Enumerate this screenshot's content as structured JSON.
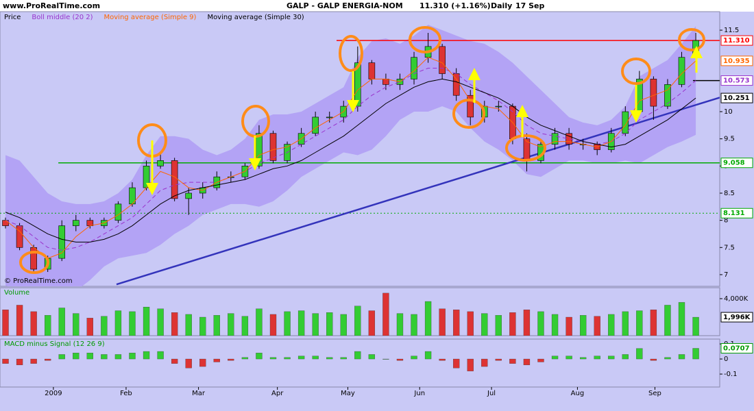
{
  "header": {
    "site": "www.ProRealTime.com",
    "title": "GALP - GALP ENERGIA-NOM",
    "change": "11.310 (+1.16%)",
    "period": "Daily",
    "date": "17 Sep",
    "copyright": "© ProRealTime.com"
  },
  "chart_data": [
    {
      "type": "candlestick",
      "xlim": [
        -0.39,
        50.7
      ],
      "ylim": [
        6.785,
        11.841
      ],
      "yticks": [
        7,
        7.5,
        8,
        8.5,
        9,
        9.5,
        10,
        11.5
      ],
      "up_color": "#33cc33",
      "down_color": "#dd3333",
      "series": [
        {
          "name": "Price",
          "color": "#000000",
          "last_label": "11.310",
          "last_color": "#ff0000",
          "open": [
            8.0,
            7.9,
            7.5,
            7.1,
            7.3,
            7.9,
            8.0,
            7.9,
            8.0,
            8.3,
            8.6,
            9.0,
            9.1,
            8.4,
            8.5,
            8.6,
            8.8,
            8.8,
            9.0,
            9.6,
            9.1,
            9.4,
            9.6,
            9.9,
            9.9,
            10.1,
            10.9,
            10.6,
            10.5,
            10.6,
            11.0,
            11.2,
            10.7,
            10.3,
            9.9,
            10.1,
            10.1,
            9.5,
            9.1,
            9.4,
            9.6,
            9.4,
            9.4,
            9.3,
            9.6,
            10.0,
            10.6,
            10.1,
            10.5,
            11.0
          ],
          "high": [
            8.05,
            7.95,
            7.55,
            7.35,
            8.0,
            8.1,
            8.05,
            8.05,
            8.35,
            8.7,
            9.1,
            9.25,
            9.15,
            8.6,
            8.7,
            8.9,
            8.9,
            9.05,
            9.75,
            9.65,
            9.45,
            9.7,
            10.0,
            10.0,
            10.2,
            11.2,
            10.95,
            10.7,
            10.7,
            11.1,
            11.45,
            11.25,
            10.8,
            10.4,
            10.2,
            10.2,
            10.15,
            9.6,
            9.5,
            9.7,
            9.7,
            9.5,
            9.45,
            9.7,
            10.1,
            10.75,
            10.65,
            10.6,
            11.1,
            11.45
          ],
          "low": [
            7.85,
            7.45,
            7.05,
            7.05,
            7.25,
            7.8,
            7.85,
            7.85,
            7.95,
            8.25,
            8.55,
            8.95,
            8.35,
            8.1,
            8.4,
            8.55,
            8.7,
            8.75,
            8.95,
            9.05,
            9.05,
            9.35,
            9.55,
            9.8,
            9.8,
            10.0,
            10.5,
            10.4,
            10.4,
            10.5,
            10.9,
            10.6,
            10.2,
            9.75,
            9.8,
            10.0,
            9.4,
            8.9,
            9.05,
            9.3,
            9.3,
            9.3,
            9.2,
            9.25,
            9.55,
            9.95,
            9.85,
            10.05,
            10.45,
            10.95
          ],
          "close": [
            7.9,
            7.5,
            7.1,
            7.3,
            7.9,
            8.0,
            7.9,
            8.0,
            8.3,
            8.6,
            9.0,
            9.1,
            8.4,
            8.5,
            8.6,
            8.8,
            8.8,
            9.0,
            9.6,
            9.1,
            9.4,
            9.6,
            9.9,
            9.9,
            10.1,
            10.9,
            10.6,
            10.5,
            10.6,
            11.0,
            11.2,
            10.7,
            10.3,
            9.9,
            10.1,
            10.1,
            9.5,
            9.1,
            9.4,
            9.6,
            9.4,
            9.4,
            9.3,
            9.6,
            10.0,
            10.6,
            10.1,
            10.5,
            11.0,
            11.31
          ]
        },
        {
          "name": "Boll middle (20 2)",
          "color": "#9933cc",
          "dash": true,
          "band_color": "#b3a3f5",
          "values": [
            8.0,
            7.9,
            7.7,
            7.5,
            7.45,
            7.5,
            7.6,
            7.75,
            7.9,
            8.05,
            8.3,
            8.55,
            8.65,
            8.7,
            8.7,
            8.7,
            8.8,
            8.9,
            9.05,
            9.15,
            9.25,
            9.4,
            9.55,
            9.7,
            9.85,
            10.1,
            10.3,
            10.45,
            10.55,
            10.7,
            10.8,
            10.8,
            10.7,
            10.5,
            10.35,
            10.2,
            10.0,
            9.75,
            9.6,
            9.55,
            9.5,
            9.45,
            9.4,
            9.45,
            9.6,
            9.85,
            10.0,
            10.15,
            10.35,
            10.573
          ],
          "upper": [
            9.2,
            9.1,
            8.8,
            8.5,
            8.35,
            8.3,
            8.3,
            8.35,
            8.5,
            8.75,
            9.2,
            9.55,
            9.55,
            9.5,
            9.3,
            9.2,
            9.3,
            9.5,
            9.85,
            9.95,
            9.95,
            10.0,
            10.15,
            10.3,
            10.45,
            11.0,
            11.3,
            11.35,
            11.25,
            11.4,
            11.6,
            11.5,
            11.4,
            11.3,
            11.25,
            11.1,
            10.9,
            10.65,
            10.4,
            10.15,
            9.9,
            9.8,
            9.75,
            9.85,
            10.1,
            10.65,
            10.8,
            10.95,
            11.25,
            11.573
          ],
          "lower": [
            6.8,
            6.7,
            6.6,
            6.5,
            6.55,
            6.7,
            6.9,
            7.15,
            7.3,
            7.35,
            7.4,
            7.55,
            7.75,
            7.9,
            8.1,
            8.2,
            8.3,
            8.3,
            8.25,
            8.35,
            8.55,
            8.8,
            8.95,
            9.1,
            9.25,
            9.2,
            9.3,
            9.55,
            9.85,
            10.0,
            10.0,
            10.1,
            10.0,
            9.7,
            9.45,
            9.3,
            9.1,
            8.85,
            8.8,
            8.95,
            9.1,
            9.1,
            9.05,
            9.05,
            9.1,
            9.05,
            9.2,
            9.35,
            9.45,
            9.573
          ]
        },
        {
          "name": "Moving average (Simple 9)",
          "color": "#ff6600",
          "values": [
            8.0,
            7.8,
            7.5,
            7.3,
            7.4,
            7.7,
            7.9,
            7.95,
            8.1,
            8.3,
            8.6,
            8.9,
            8.8,
            8.6,
            8.55,
            8.7,
            8.8,
            8.9,
            9.2,
            9.3,
            9.35,
            9.5,
            9.7,
            9.85,
            10.0,
            10.4,
            10.6,
            10.6,
            10.55,
            10.75,
            11.0,
            10.9,
            10.6,
            10.2,
            10.1,
            10.05,
            9.8,
            9.45,
            9.35,
            9.45,
            9.45,
            9.4,
            9.35,
            9.45,
            9.75,
            10.2,
            10.3,
            10.4,
            10.7,
            10.935
          ]
        },
        {
          "name": "Moving average (Simple 30)",
          "color": "#000000",
          "values": [
            8.15,
            8.05,
            7.9,
            7.75,
            7.65,
            7.6,
            7.6,
            7.65,
            7.75,
            7.9,
            8.1,
            8.3,
            8.45,
            8.55,
            8.6,
            8.65,
            8.7,
            8.75,
            8.85,
            8.95,
            9.0,
            9.1,
            9.25,
            9.4,
            9.55,
            9.75,
            9.95,
            10.15,
            10.3,
            10.45,
            10.55,
            10.6,
            10.55,
            10.45,
            10.35,
            10.25,
            10.1,
            9.9,
            9.75,
            9.65,
            9.55,
            9.45,
            9.4,
            9.35,
            9.4,
            9.55,
            9.7,
            9.85,
            10.05,
            10.251
          ]
        }
      ],
      "hlines": [
        {
          "value": 11.31,
          "color": "#ff0000",
          "from": 23.5,
          "show_label": false
        },
        {
          "value": 10.573,
          "color": "#000000",
          "from": 48.8,
          "show_label": false
        },
        {
          "value": 9.058,
          "color": "#00aa00",
          "from": 3.75,
          "show_label": true
        },
        {
          "value": 8.131,
          "color": "#00aa00",
          "from": -0.39,
          "dash": true,
          "show_label": true
        }
      ],
      "trendlines": [
        {
          "x": [
            7.88,
            50.7
          ],
          "y": [
            6.82,
            10.26
          ],
          "color": "#3333bb"
        }
      ]
    },
    {
      "type": "bar",
      "title": "Volume",
      "xlim": [
        -0.39,
        50.7
      ],
      "ylim": [
        0,
        5185000
      ],
      "yticks": [
        {
          "value": 4000000,
          "label": "4,000K"
        }
      ],
      "up_color": "#33cc33",
      "down_color": "#dd3333",
      "last_label": "1,996K",
      "last_color": "#000000",
      "values": [
        2800000,
        3300000,
        2600000,
        2200000,
        3000000,
        2400000,
        1900000,
        2100000,
        2700000,
        2600000,
        3100000,
        2900000,
        2500000,
        2300000,
        2000000,
        2200000,
        2400000,
        2100000,
        2900000,
        2300000,
        2600000,
        2700000,
        2400000,
        2500000,
        2300000,
        3200000,
        2700000,
        4600000,
        2400000,
        2300000,
        3700000,
        2900000,
        2800000,
        2600000,
        2400000,
        2200000,
        2500000,
        2800000,
        2600000,
        2300000,
        2000000,
        2200000,
        2100000,
        2300000,
        2600000,
        2700000,
        2800000,
        3300000,
        3600000,
        1996000
      ]
    },
    {
      "type": "bar",
      "title": "MACD minus Signal (12 26 9)",
      "xlim": [
        -0.39,
        50.7
      ],
      "ylim": [
        -0.186,
        0.132
      ],
      "yticks": [
        0.1,
        0,
        -0.1
      ],
      "pos_color": "#33cc33",
      "neg_color": "#dd3333",
      "last_color": "#009900",
      "values": [
        -0.03,
        -0.04,
        -0.03,
        -0.01,
        0.03,
        0.04,
        0.04,
        0.03,
        0.03,
        0.04,
        0.05,
        0.05,
        -0.03,
        -0.06,
        -0.05,
        -0.02,
        -0.01,
        0.01,
        0.04,
        0.01,
        0.01,
        0.02,
        0.02,
        0.01,
        0.01,
        0.05,
        0.03,
        0,
        -0.01,
        0.02,
        0.05,
        -0.01,
        -0.06,
        -0.08,
        -0.05,
        -0.01,
        -0.03,
        -0.04,
        -0.02,
        0.02,
        0.02,
        0.01,
        0.02,
        0.02,
        0.03,
        0.07,
        -0.01,
        0.01,
        0.03,
        0.0707
      ],
      "xticks": [
        {
          "value": 3.4,
          "label": "2009"
        },
        {
          "value": 8.56,
          "label": "Feb"
        },
        {
          "value": 13.7,
          "label": "Mar"
        },
        {
          "value": 19.3,
          "label": "Apr"
        },
        {
          "value": 24.3,
          "label": "May"
        },
        {
          "value": 29.4,
          "label": "Jun"
        },
        {
          "value": 34.5,
          "label": "Jul"
        },
        {
          "value": 40.6,
          "label": "Aug"
        },
        {
          "value": 46.1,
          "label": "Sep"
        }
      ]
    }
  ]
}
